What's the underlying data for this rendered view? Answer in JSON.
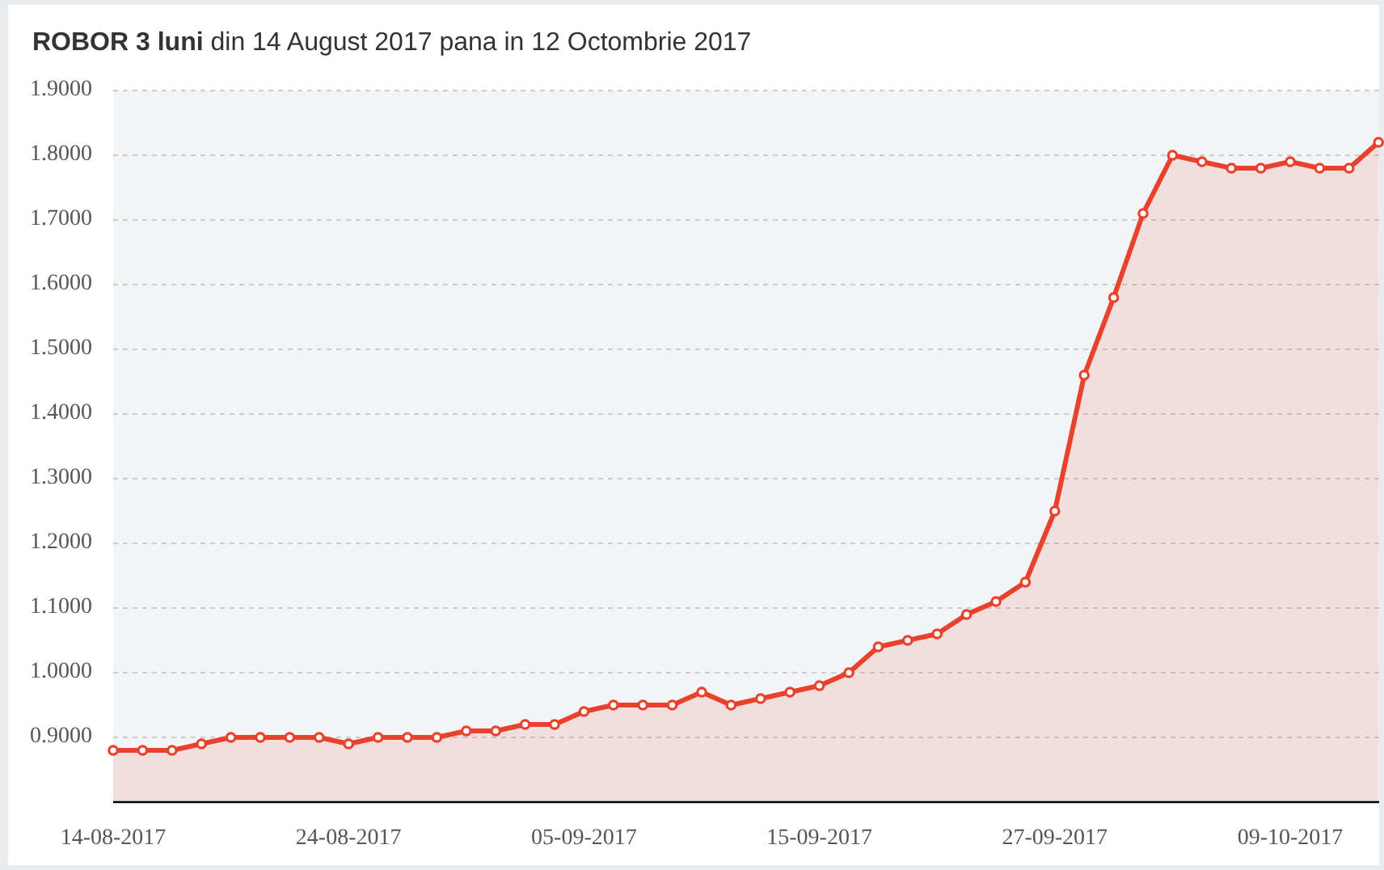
{
  "chart_data": {
    "type": "area",
    "title": "ROBOR 3 luni",
    "subtitle": "din 14 August 2017 pana in 12 Octombrie 2017",
    "categories": [
      "14-08-2017",
      null,
      null,
      null,
      null,
      null,
      null,
      null,
      "24-08-2017",
      null,
      null,
      null,
      null,
      null,
      null,
      null,
      "05-09-2017",
      null,
      null,
      null,
      null,
      null,
      null,
      null,
      "15-09-2017",
      null,
      null,
      null,
      null,
      null,
      null,
      null,
      "27-09-2017",
      null,
      null,
      null,
      null,
      null,
      null,
      null,
      "09-10-2017",
      null,
      null,
      null
    ],
    "values": [
      0.88,
      0.88,
      0.88,
      0.89,
      0.9,
      0.9,
      0.9,
      0.9,
      0.89,
      0.9,
      0.9,
      0.9,
      0.91,
      0.91,
      0.92,
      0.92,
      0.94,
      0.95,
      0.95,
      0.95,
      0.97,
      0.95,
      0.96,
      0.97,
      0.98,
      1.0,
      1.04,
      1.05,
      1.06,
      1.09,
      1.11,
      1.14,
      1.25,
      1.46,
      1.58,
      1.71,
      1.8,
      1.79,
      1.78,
      1.78,
      1.79,
      1.78,
      1.78,
      1.82
    ],
    "color": "#e8412c",
    "ylim": [
      0.8,
      1.9
    ],
    "yticks": [
      {
        "value": 0.9,
        "label": "0.9000"
      },
      {
        "value": 1.0,
        "label": "1.0000"
      },
      {
        "value": 1.1,
        "label": "1.1000"
      },
      {
        "value": 1.2,
        "label": "1.2000"
      },
      {
        "value": 1.3,
        "label": "1.3000"
      },
      {
        "value": 1.4,
        "label": "1.4000"
      },
      {
        "value": 1.5,
        "label": "1.5000"
      },
      {
        "value": 1.6,
        "label": "1.6000"
      },
      {
        "value": 1.7,
        "label": "1.7000"
      },
      {
        "value": 1.8,
        "label": "1.8000"
      },
      {
        "value": 1.9,
        "label": "1.9000"
      }
    ],
    "grid": "y",
    "marker": "circle",
    "line_style": "solid"
  }
}
